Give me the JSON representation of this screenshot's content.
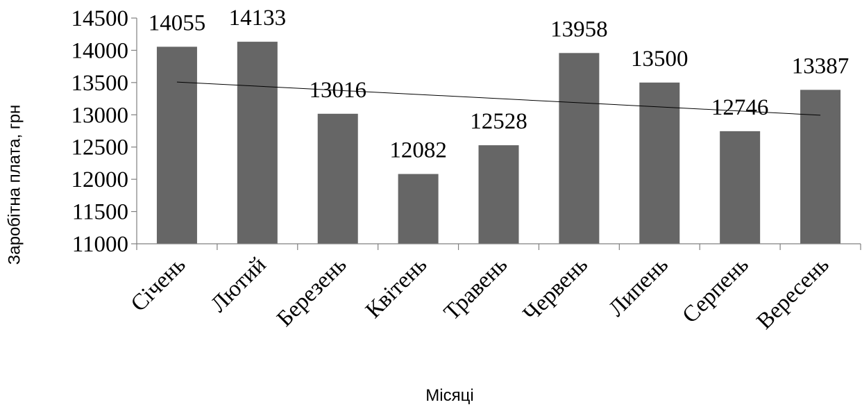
{
  "chart_data": {
    "type": "bar",
    "categories": [
      "Січень",
      "Лютий",
      "Березень",
      "Квітень",
      "Травень",
      "Червень",
      "Липень",
      "Серпень",
      "Вересень"
    ],
    "values": [
      14055,
      14133,
      13016,
      12082,
      12528,
      13958,
      13500,
      12746,
      13387
    ],
    "data_labels": [
      "14055",
      "14133",
      "13016",
      "12082",
      "12528",
      "13958",
      "13500",
      "12746",
      "13387"
    ],
    "title": "",
    "xlabel": "Місяці",
    "ylabel": "Заробітна плата, грн",
    "ylim": [
      11000,
      14500
    ],
    "yticks": [
      11000,
      11500,
      12000,
      12500,
      13000,
      13500,
      14000,
      14500
    ],
    "ytick_labels": [
      "11000",
      "11500",
      "12000",
      "12500",
      "13000",
      "13500",
      "14000",
      "14500"
    ],
    "trendline": {
      "type": "linear",
      "start_value": 13508,
      "end_value": 12994
    },
    "grid": false,
    "legend": "none",
    "colors": {
      "bar": "#666666",
      "trendline": "#000000",
      "axis": "#808080"
    }
  }
}
